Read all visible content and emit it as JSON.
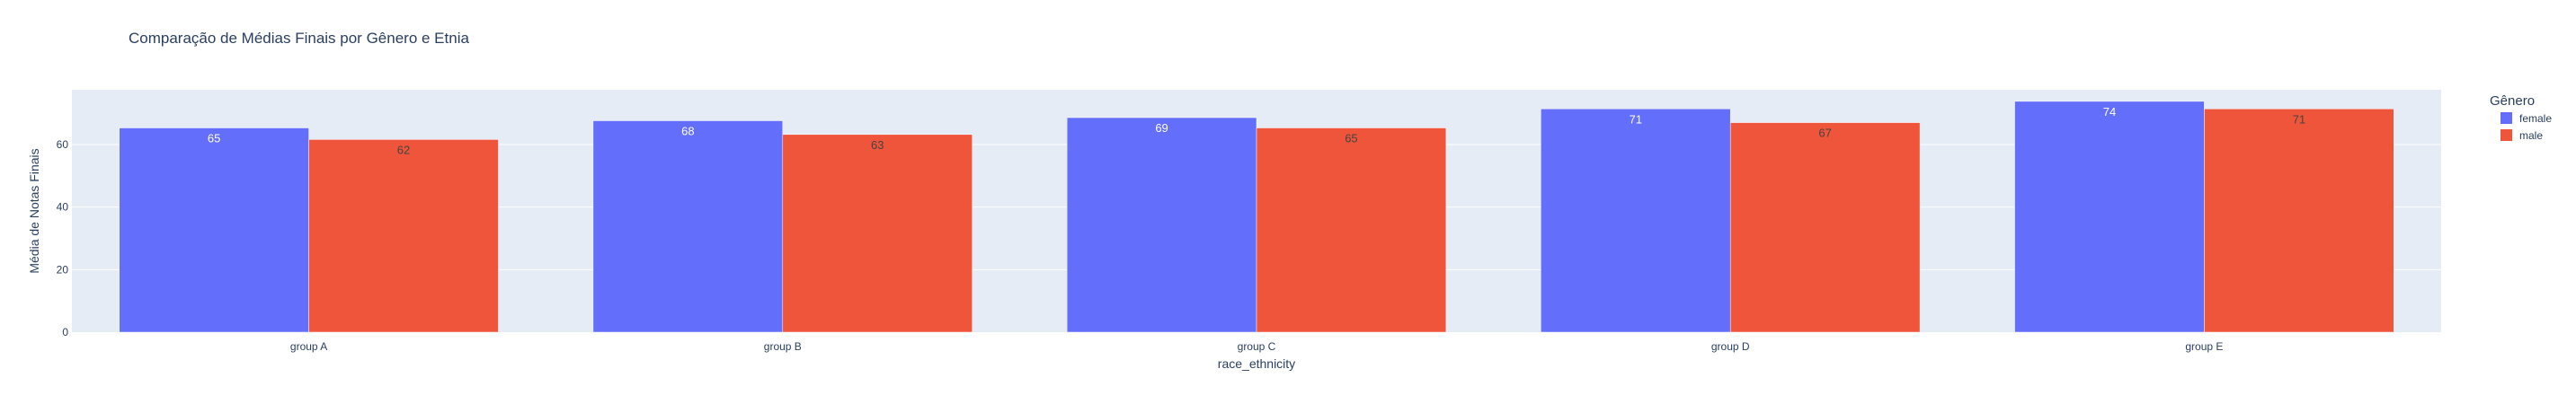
{
  "chart_data": {
    "type": "bar",
    "title": "Comparação de Médias Finais por Gênero e Etnia",
    "xlabel": "race_ethnicity",
    "ylabel": "Média de Notas Finais",
    "categories": [
      "group A",
      "group B",
      "group C",
      "group D",
      "group E"
    ],
    "series": [
      {
        "name": "female",
        "values": [
          65.3,
          67.6,
          68.6,
          71.4,
          73.8
        ],
        "labels": [
          "65",
          "68",
          "69",
          "71",
          "74"
        ]
      },
      {
        "name": "male",
        "values": [
          61.6,
          63.2,
          65.3,
          67.0,
          71.4
        ],
        "labels": [
          "62",
          "63",
          "65",
          "67",
          "71"
        ]
      }
    ],
    "ylim": [
      0,
      77.5
    ],
    "yticks": [
      0,
      20,
      40,
      60
    ],
    "grid": true,
    "legend": {
      "title": "Gênero",
      "position": "top-right"
    },
    "colors": {
      "female": "#636efa",
      "male": "#ef553b",
      "plot_background": "#e5ecf6",
      "text": "#2a3f5f",
      "gridline": "#ffffff"
    }
  }
}
